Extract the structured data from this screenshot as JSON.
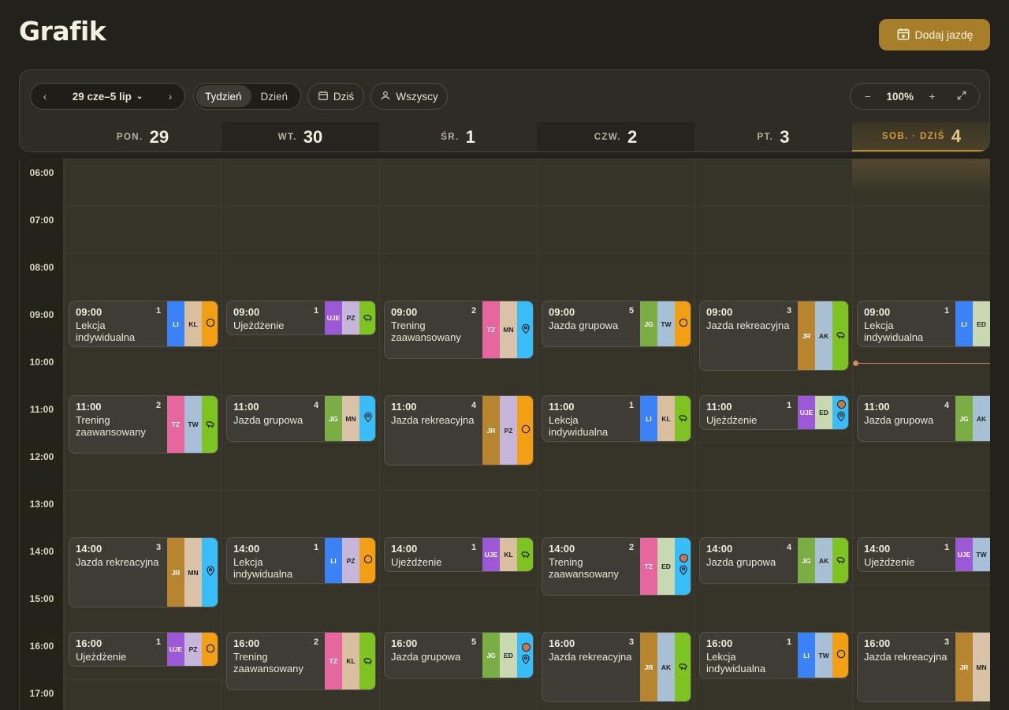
{
  "app": {
    "title": "Grafik",
    "add_button": "Dodaj jazdę"
  },
  "toolbar": {
    "range": "29 cze–5 lip",
    "view_week": "Tydzień",
    "view_day": "Dzień",
    "today": "Dziś",
    "people": "Wszyscy",
    "zoom": "100%"
  },
  "days": [
    {
      "name": "PON.",
      "num": "29"
    },
    {
      "name": "WT.",
      "num": "30"
    },
    {
      "name": "ŚR.",
      "num": "1"
    },
    {
      "name": "CZW.",
      "num": "2"
    },
    {
      "name": "PT.",
      "num": "3"
    },
    {
      "name": "SOB. · DZIŚ",
      "num": "4"
    }
  ],
  "hours": [
    "06:00",
    "07:00",
    "08:00",
    "09:00",
    "10:00",
    "11:00",
    "12:00",
    "13:00",
    "14:00",
    "15:00",
    "16:00",
    "17:00"
  ],
  "colors": {
    "LI": "#3b82f6",
    "KL": "#d9bea0",
    "UJE": "#9b59d6",
    "PZ": "#c5b6da",
    "TZ": "#e6679e",
    "MN": "#d8c3a9",
    "JG": "#7aae45",
    "TW": "#a7c0d8",
    "JR": "#b78430",
    "AK": "#a7c0d3",
    "ED": "#c8d8b0",
    "circle": "#f29f16",
    "tree": "#7ec322",
    "pin": "#38bdf8"
  },
  "events": [
    {
      "day": 0,
      "hour": 9,
      "dur": 1,
      "time": "09:00",
      "count": "1",
      "title": "Lekcja indywidualna",
      "tags": [
        "LI",
        "KL"
      ],
      "icon": "circle"
    },
    {
      "day": 0,
      "hour": 11,
      "dur": 1.25,
      "time": "11:00",
      "count": "2",
      "title": "Trening zaawansowany",
      "tags": [
        "TZ",
        "TW"
      ],
      "icon": "tree"
    },
    {
      "day": 0,
      "hour": 14,
      "dur": 1.5,
      "time": "14:00",
      "count": "3",
      "title": "Jazda rekreacyjna",
      "tags": [
        "JR",
        "MN"
      ],
      "icon": "pin"
    },
    {
      "day": 0,
      "hour": 16,
      "dur": 0.75,
      "time": "16:00",
      "count": "1",
      "title": "Ujeżdżenie",
      "tags": [
        "UJE",
        "PZ"
      ],
      "icon": "circle"
    },
    {
      "day": 1,
      "hour": 9,
      "dur": 0.75,
      "time": "09:00",
      "count": "1",
      "title": "Ujeżdżenie",
      "tags": [
        "UJE",
        "PZ"
      ],
      "icon": "tree"
    },
    {
      "day": 1,
      "hour": 11,
      "dur": 1,
      "time": "11:00",
      "count": "4",
      "title": "Jazda grupowa",
      "tags": [
        "JG",
        "MN"
      ],
      "icon": "pin"
    },
    {
      "day": 1,
      "hour": 14,
      "dur": 1,
      "time": "14:00",
      "count": "1",
      "title": "Lekcja indywidualna",
      "tags": [
        "LI",
        "PZ"
      ],
      "icon": "circle"
    },
    {
      "day": 1,
      "hour": 16,
      "dur": 1.25,
      "time": "16:00",
      "count": "2",
      "title": "Trening zaawansowany",
      "tags": [
        "TZ",
        "KL"
      ],
      "icon": "tree"
    },
    {
      "day": 2,
      "hour": 9,
      "dur": 1.25,
      "time": "09:00",
      "count": "2",
      "title": "Trening zaawansowany",
      "tags": [
        "TZ",
        "MN"
      ],
      "icon": "pin"
    },
    {
      "day": 2,
      "hour": 11,
      "dur": 1.5,
      "time": "11:00",
      "count": "4",
      "title": "Jazda rekreacyjna",
      "tags": [
        "JR",
        "PZ"
      ],
      "icon": "circle"
    },
    {
      "day": 2,
      "hour": 14,
      "dur": 0.75,
      "time": "14:00",
      "count": "1",
      "title": "Ujeżdżenie",
      "tags": [
        "UJE",
        "KL"
      ],
      "icon": "tree"
    },
    {
      "day": 2,
      "hour": 16,
      "dur": 1,
      "time": "16:00",
      "count": "5",
      "title": "Jazda grupowa",
      "tags": [
        "JG",
        "ED"
      ],
      "icon": "pin",
      "status": true
    },
    {
      "day": 3,
      "hour": 9,
      "dur": 1,
      "time": "09:00",
      "count": "5",
      "title": "Jazda grupowa",
      "tags": [
        "JG",
        "TW"
      ],
      "icon": "circle"
    },
    {
      "day": 3,
      "hour": 11,
      "dur": 1,
      "time": "11:00",
      "count": "1",
      "title": "Lekcja indywidualna",
      "tags": [
        "LI",
        "KL"
      ],
      "icon": "tree"
    },
    {
      "day": 3,
      "hour": 14,
      "dur": 1.25,
      "time": "14:00",
      "count": "2",
      "title": "Trening zaawansowany",
      "tags": [
        "TZ",
        "ED"
      ],
      "icon": "pin",
      "status": true
    },
    {
      "day": 3,
      "hour": 16,
      "dur": 1.5,
      "time": "16:00",
      "count": "3",
      "title": "Jazda rekreacyjna",
      "tags": [
        "JR",
        "AK"
      ],
      "icon": "tree"
    },
    {
      "day": 4,
      "hour": 9,
      "dur": 1.5,
      "time": "09:00",
      "count": "3",
      "title": "Jazda rekreacyjna",
      "tags": [
        "JR",
        "AK"
      ],
      "icon": "tree"
    },
    {
      "day": 4,
      "hour": 11,
      "dur": 0.75,
      "time": "11:00",
      "count": "1",
      "title": "Ujeżdżenie",
      "tags": [
        "UJE",
        "ED"
      ],
      "icon": "pin",
      "status": true
    },
    {
      "day": 4,
      "hour": 14,
      "dur": 1,
      "time": "14:00",
      "count": "4",
      "title": "Jazda grupowa",
      "tags": [
        "JG",
        "AK"
      ],
      "icon": "tree"
    },
    {
      "day": 4,
      "hour": 16,
      "dur": 1,
      "time": "16:00",
      "count": "1",
      "title": "Lekcja indywidualna",
      "tags": [
        "LI",
        "TW"
      ],
      "icon": "circle"
    },
    {
      "day": 5,
      "hour": 9,
      "dur": 1,
      "time": "09:00",
      "count": "1",
      "title": "Lekcja indywidualna",
      "tags": [
        "LI",
        "ED"
      ],
      "icon": "none"
    },
    {
      "day": 5,
      "hour": 11,
      "dur": 1,
      "time": "11:00",
      "count": "4",
      "title": "Jazda grupowa",
      "tags": [
        "JG",
        "AK"
      ],
      "icon": "none"
    },
    {
      "day": 5,
      "hour": 14,
      "dur": 0.75,
      "time": "14:00",
      "count": "1",
      "title": "Ujeżdżenie",
      "tags": [
        "UJE",
        "TW"
      ],
      "icon": "none"
    },
    {
      "day": 5,
      "hour": 16,
      "dur": 1.5,
      "time": "16:00",
      "count": "3",
      "title": "Jazda rekreacyjna",
      "tags": [
        "JR",
        "MN"
      ],
      "icon": "none"
    }
  ]
}
